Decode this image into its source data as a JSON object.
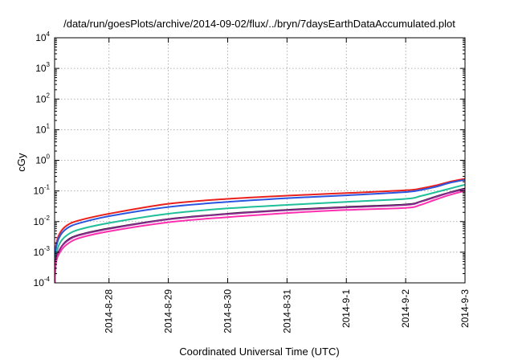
{
  "chart_data": {
    "type": "line",
    "title": "/data/run/goesPlots/archive/2014-09-02/flux/../bryn/7daysEarthDataAccumulated.plot",
    "xlabel": "Coordinated Universal Time (UTC)",
    "ylabel": "cGy",
    "y_scale": "log",
    "ylim": [
      0.0001,
      10000
    ],
    "xlim": [
      "2014-08-27T02:00",
      "2014-09-03T00:00"
    ],
    "grid": true,
    "legend": "none",
    "x_ticks": [
      "2014-8-28",
      "2014-8-29",
      "2014-8-30",
      "2014-8-31",
      "2014-9-1",
      "2014-9-2",
      "2014-9-3"
    ],
    "y_ticks": [
      {
        "base": "10",
        "exp": "-4"
      },
      {
        "base": "10",
        "exp": "-3"
      },
      {
        "base": "10",
        "exp": "-2"
      },
      {
        "base": "10",
        "exp": "-1"
      },
      {
        "base": "10",
        "exp": "0"
      },
      {
        "base": "10",
        "exp": "1"
      },
      {
        "base": "10",
        "exp": "2"
      },
      {
        "base": "10",
        "exp": "3"
      },
      {
        "base": "10",
        "exp": "4"
      }
    ],
    "x": [
      "2014-08-27T02:00",
      "2014-08-27T02:30",
      "2014-08-27T04:00",
      "2014-08-27T07:00",
      "2014-08-27T12:00",
      "2014-08-28T00:00",
      "2014-08-29T00:00",
      "2014-08-30T00:00",
      "2014-08-31T00:00",
      "2014-09-01T00:00",
      "2014-09-02T00:00",
      "2014-09-02T06:00",
      "2014-09-02T12:00",
      "2014-09-02T18:00",
      "2014-09-03T00:00"
    ],
    "series": [
      {
        "color": "#e8211d",
        "values": [
          0.00025,
          0.0015,
          0.004,
          0.0075,
          0.011,
          0.018,
          0.038,
          0.055,
          0.07,
          0.085,
          0.105,
          0.12,
          0.15,
          0.2,
          0.25
        ]
      },
      {
        "color": "#2a55e0",
        "values": [
          0.0002,
          0.0012,
          0.0032,
          0.006,
          0.0089,
          0.015,
          0.03,
          0.044,
          0.058,
          0.072,
          0.092,
          0.107,
          0.135,
          0.185,
          0.23
        ]
      },
      {
        "color": "#1fbf9a",
        "values": [
          0.00013,
          0.0007,
          0.0019,
          0.0036,
          0.0055,
          0.009,
          0.018,
          0.027,
          0.035,
          0.044,
          0.055,
          0.068,
          0.09,
          0.12,
          0.16
        ]
      },
      {
        "color": "#0b0b0b",
        "values": [
          8e-05,
          0.0005,
          0.0012,
          0.0024,
          0.0037,
          0.006,
          0.012,
          0.018,
          0.024,
          0.03,
          0.036,
          0.045,
          0.065,
          0.09,
          0.12
        ]
      },
      {
        "color": "#8b2a8f",
        "values": [
          8e-05,
          0.00048,
          0.0012,
          0.0023,
          0.0036,
          0.0058,
          0.0118,
          0.0176,
          0.0235,
          0.029,
          0.035,
          0.044,
          0.063,
          0.088,
          0.115
        ]
      },
      {
        "color": "#ff2fb0",
        "values": [
          6e-05,
          0.0004,
          0.00095,
          0.0018,
          0.0029,
          0.0048,
          0.0095,
          0.014,
          0.019,
          0.024,
          0.028,
          0.035,
          0.052,
          0.075,
          0.1
        ]
      }
    ]
  }
}
